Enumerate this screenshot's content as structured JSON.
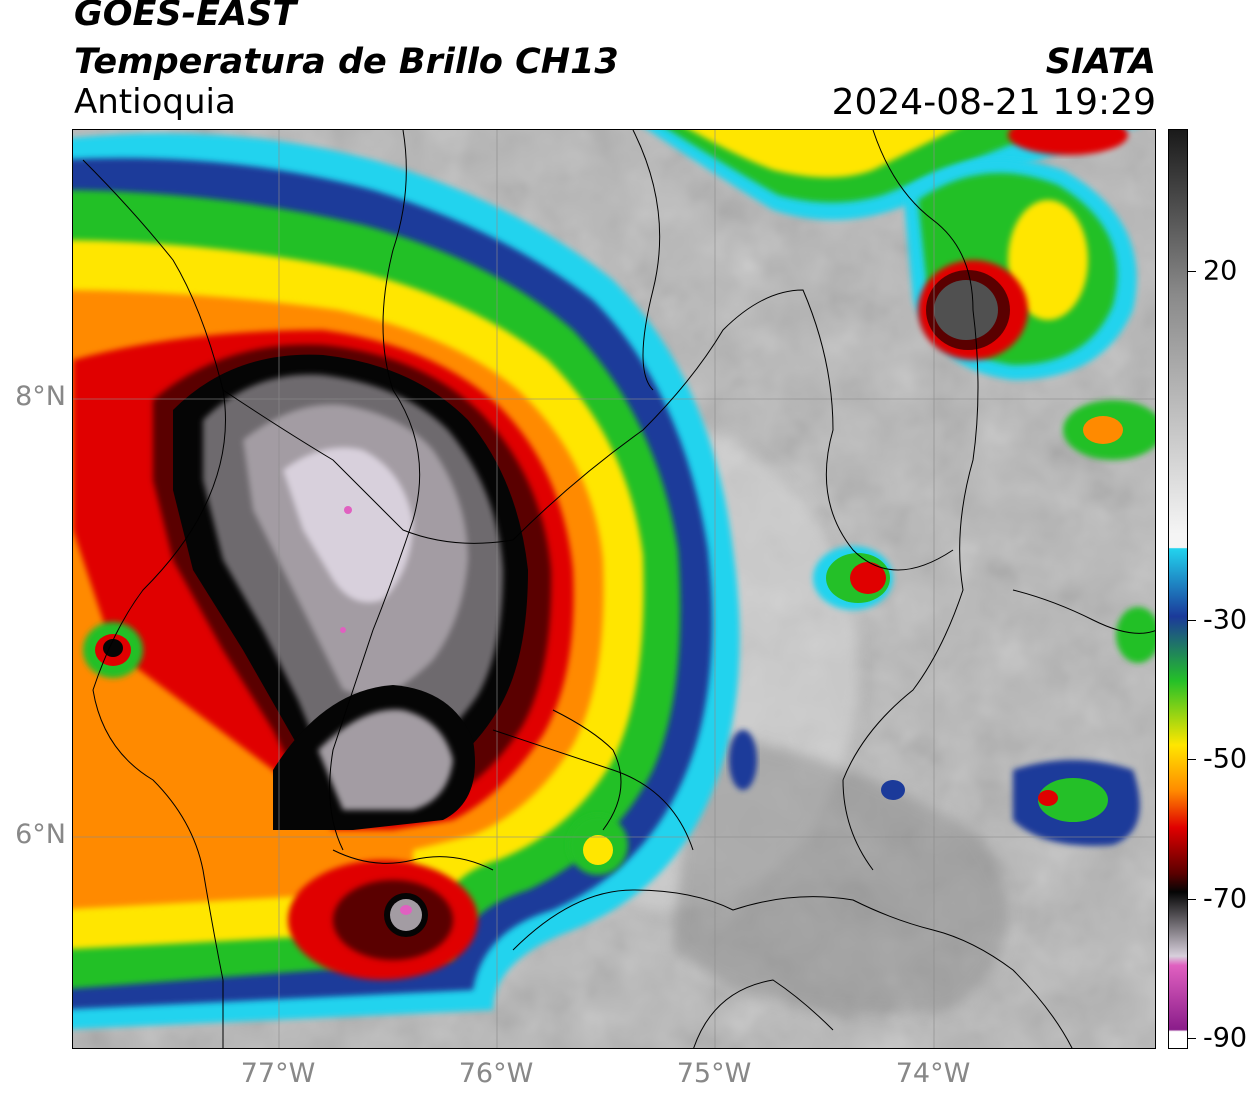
{
  "header": {
    "satellite": "GOES-EAST",
    "product": "Temperatura de Brillo CH13",
    "region": "Antioquia",
    "organization": "SIATA",
    "timestamp": "2024-08-21 19:29"
  },
  "axes": {
    "latitude_labels": [
      "8°N",
      "6°N"
    ],
    "longitude_labels": [
      "77°W",
      "76°W",
      "75°W",
      "74°W"
    ]
  },
  "colorbar": {
    "labels": [
      "20",
      "-30",
      "-50",
      "-70",
      "-90"
    ],
    "colors": {
      "warm_top": "#1a1a1a",
      "warm_gray": "#8a8a8a",
      "near_zero": "#f5f5f5",
      "cyan": "#22d3ee",
      "blue": "#1b3a9a",
      "green": "#24c028",
      "yellow": "#ffe600",
      "orange": "#ff8a00",
      "red": "#e00000",
      "dark_red": "#5a0000",
      "black": "#050505",
      "light_gray": "#d8d0dc",
      "pink": "#e060c0",
      "purple": "#8a1d8a"
    }
  }
}
